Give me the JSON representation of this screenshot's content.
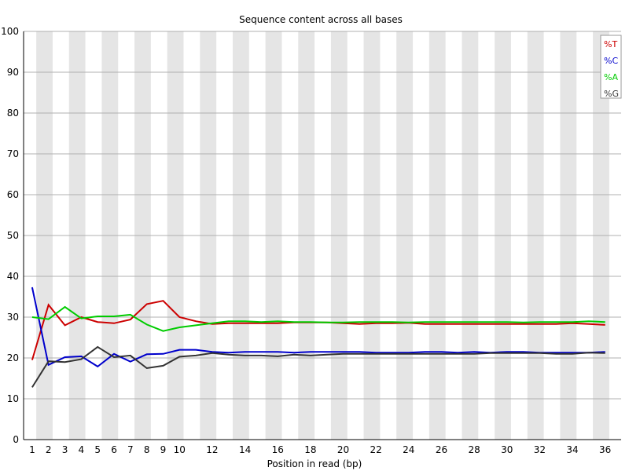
{
  "chart_data": {
    "type": "line",
    "title": "Sequence content across all bases",
    "xlabel": "Position in read (bp)",
    "ylabel": "",
    "ylim": [
      0,
      100
    ],
    "y_ticks": [
      "0",
      "10",
      "20",
      "30",
      "40",
      "50",
      "60",
      "70",
      "80",
      "90",
      "100"
    ],
    "x": [
      1,
      2,
      3,
      4,
      5,
      6,
      7,
      8,
      9,
      10,
      11,
      12,
      13,
      14,
      15,
      16,
      17,
      18,
      19,
      20,
      21,
      22,
      23,
      24,
      25,
      26,
      27,
      28,
      29,
      30,
      31,
      32,
      33,
      34,
      35,
      36
    ],
    "x_tick_labels": [
      "1",
      "2",
      "3",
      "4",
      "5",
      "6",
      "7",
      "8",
      "9",
      "10",
      "12",
      "14",
      "16",
      "18",
      "20",
      "22",
      "24",
      "26",
      "28",
      "30",
      "32",
      "34",
      "36"
    ],
    "x_tick_positions": [
      1,
      2,
      3,
      4,
      5,
      6,
      7,
      8,
      9,
      10,
      12,
      14,
      16,
      18,
      20,
      22,
      24,
      26,
      28,
      30,
      32,
      34,
      36
    ],
    "grid": true,
    "alternating_bands": true,
    "legend_position": "top-right",
    "series": [
      {
        "name": "%T",
        "color": "#cc0000",
        "values": [
          19.5,
          33,
          28,
          30,
          28.8,
          28.5,
          29.4,
          33.2,
          34,
          30,
          29,
          28.3,
          28.5,
          28.5,
          28.5,
          28.5,
          28.7,
          28.7,
          28.7,
          28.5,
          28.3,
          28.5,
          28.5,
          28.6,
          28.3,
          28.3,
          28.3,
          28.3,
          28.3,
          28.3,
          28.3,
          28.3,
          28.3,
          28.5,
          28.3,
          28.1
        ]
      },
      {
        "name": "%C",
        "color": "#0000cc",
        "values": [
          37.3,
          18.3,
          20.2,
          20.4,
          17.9,
          21,
          19.1,
          20.9,
          21,
          22,
          22,
          21.5,
          21.3,
          21.5,
          21.5,
          21.5,
          21.3,
          21.5,
          21.5,
          21.5,
          21.5,
          21.3,
          21.3,
          21.3,
          21.5,
          21.5,
          21.3,
          21.5,
          21.3,
          21.5,
          21.5,
          21.3,
          21.3,
          21.3,
          21.3,
          21.5
        ]
      },
      {
        "name": "%A",
        "color": "#00cc00",
        "values": [
          30,
          29.5,
          32.5,
          29.7,
          30.2,
          30.2,
          30.6,
          28.2,
          26.6,
          27.5,
          28,
          28.5,
          29,
          29,
          28.8,
          29,
          28.8,
          28.8,
          28.7,
          28.7,
          28.8,
          28.8,
          28.8,
          28.7,
          28.8,
          28.8,
          28.8,
          28.8,
          28.8,
          28.8,
          28.7,
          28.8,
          28.8,
          28.8,
          29,
          28.8
        ]
      },
      {
        "name": "%G",
        "color": "#333333",
        "values": [
          12.8,
          19.2,
          19,
          19.7,
          22.7,
          20.2,
          20.6,
          17.5,
          18.1,
          20.3,
          20.6,
          21.2,
          20.8,
          20.6,
          20.6,
          20.4,
          20.8,
          20.6,
          20.8,
          21,
          21,
          21,
          21,
          21,
          21,
          21,
          21,
          21,
          21.2,
          21.2,
          21.2,
          21.2,
          21,
          21,
          21.3,
          21.2
        ]
      }
    ]
  }
}
